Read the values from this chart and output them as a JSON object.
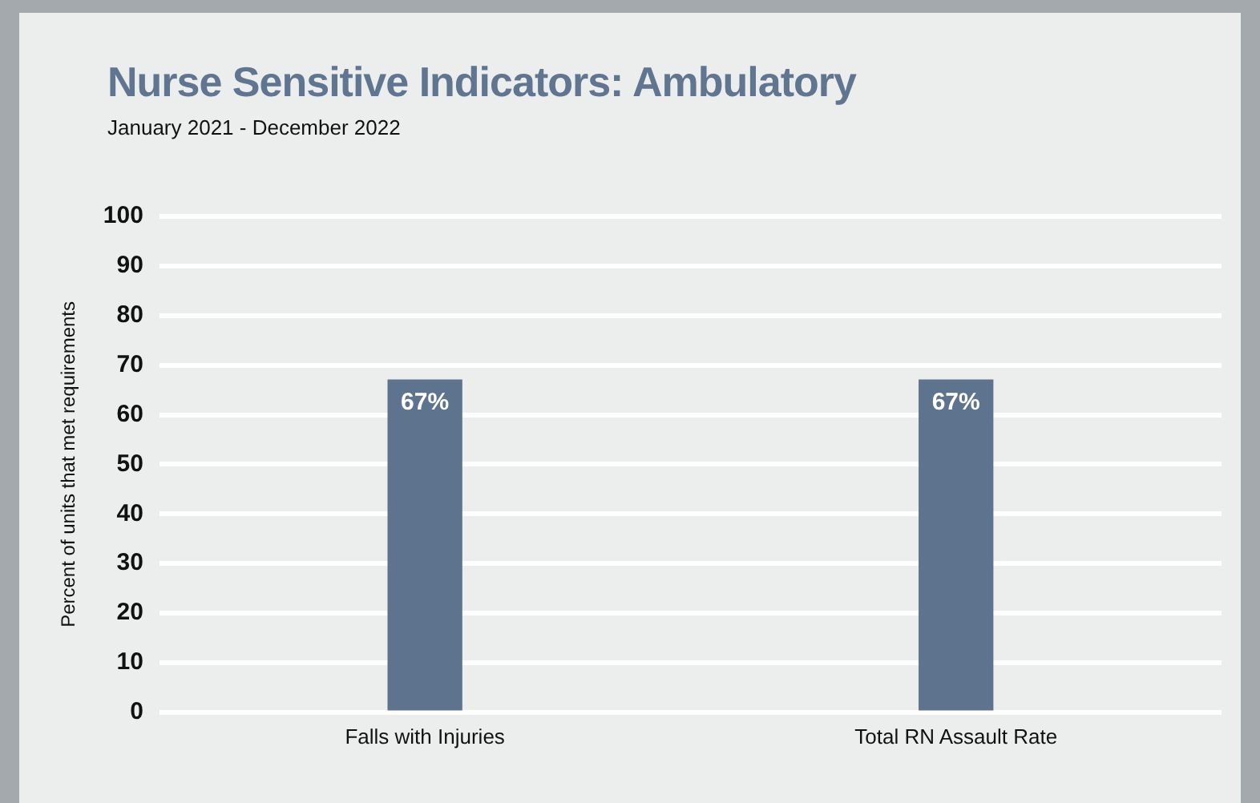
{
  "chart_data": {
    "type": "bar",
    "title": "Nurse Sensitive Indicators: Ambulatory",
    "subtitle": "January 2021 - December 2022",
    "ylabel": "Percent of units that met requirements",
    "categories": [
      "Falls with Injuries",
      "Total RN Assault Rate"
    ],
    "values": [
      67,
      67
    ],
    "value_labels": [
      "67%",
      "67%"
    ],
    "color": "#5e738d",
    "ylim": [
      0,
      100
    ],
    "yticks": [
      0,
      10,
      20,
      30,
      40,
      50,
      60,
      70,
      80,
      90,
      100
    ],
    "grid": "y"
  }
}
